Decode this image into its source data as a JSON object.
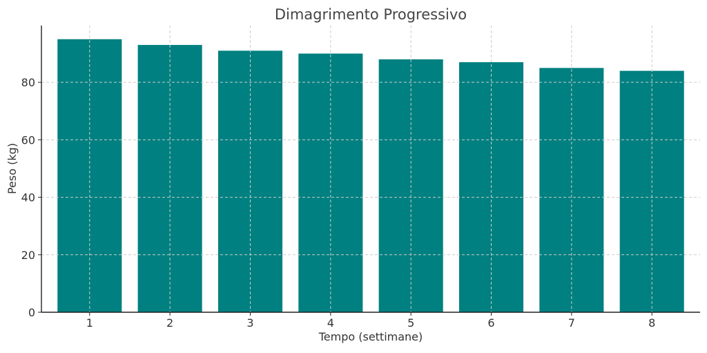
{
  "chart_data": {
    "type": "bar",
    "title": "Dimagrimento Progressivo",
    "xlabel": "Tempo (settimane)",
    "ylabel": "Peso (kg)",
    "categories": [
      "1",
      "2",
      "3",
      "4",
      "5",
      "6",
      "7",
      "8"
    ],
    "values": [
      95,
      93,
      91,
      90,
      88,
      87,
      85,
      84
    ],
    "ylim": [
      0,
      99.75
    ],
    "yticks": [
      0,
      20,
      40,
      60,
      80
    ],
    "grid": true,
    "bar_color": "#008080",
    "legend": "none"
  }
}
